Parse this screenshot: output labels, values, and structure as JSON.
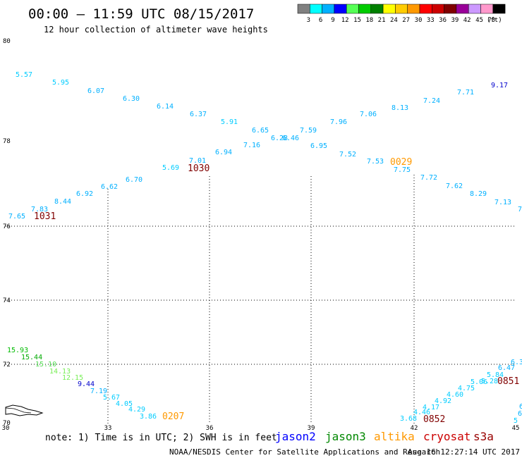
{
  "header": {
    "title": "00:00 – 11:59 UTC 08/15/2017",
    "subtitle": "12 hour collection of altimeter wave heights"
  },
  "color_scale": {
    "boxes": [
      "#808080",
      "#00ffff",
      "#00b0ff",
      "#0000ff",
      "#55ff55",
      "#00cc00",
      "#008000",
      "#ffff00",
      "#ffcc00",
      "#ff9900",
      "#ff0000",
      "#cc0000",
      "#800000",
      "#990099",
      "#cc99ff",
      "#ff99cc",
      "#000000"
    ],
    "labels": [
      "3",
      "6",
      "9",
      "12",
      "15",
      "18",
      "21",
      "24",
      "27",
      "30",
      "33",
      "36",
      "39",
      "42",
      "45",
      "70",
      "(ft)"
    ]
  },
  "axes": {
    "lat_labels": [
      "80",
      "78",
      "76",
      "74",
      "72",
      "70"
    ],
    "lon_labels": [
      "30",
      "33",
      "36",
      "39",
      "42",
      "45"
    ]
  },
  "readings": [
    {
      "text": "5.57",
      "c": "#00ccff"
    },
    {
      "text": "5.95",
      "c": "#00ccff"
    },
    {
      "text": "6.07",
      "c": "#00b0ff"
    },
    {
      "text": "6.30",
      "c": "#00b0ff"
    },
    {
      "text": "6.14",
      "c": "#00b0ff"
    },
    {
      "text": "6.37",
      "c": "#00b0ff"
    },
    {
      "text": "5.91",
      "c": "#00ccff"
    },
    {
      "text": "6.65",
      "c": "#00b0ff"
    },
    {
      "text": "6.28",
      "c": "#00b0ff"
    },
    {
      "text": "6.46",
      "c": "#00b0ff"
    },
    {
      "text": "7.59",
      "c": "#00b0ff"
    },
    {
      "text": "7.96",
      "c": "#00b0ff"
    },
    {
      "text": "7.06",
      "c": "#00b0ff"
    },
    {
      "text": "8.13",
      "c": "#00b0ff"
    },
    {
      "text": "7.24",
      "c": "#00b0ff"
    },
    {
      "text": "7.71",
      "c": "#00b0ff"
    },
    {
      "text": "9.17",
      "c": "#0000cc"
    },
    {
      "text": "7.16",
      "c": "#00b0ff"
    },
    {
      "text": "6.95",
      "c": "#00b0ff"
    },
    {
      "text": "6.94",
      "c": "#00b0ff"
    },
    {
      "text": "7.01",
      "c": "#00b0ff"
    },
    {
      "text": "5.69",
      "c": "#00ccff"
    },
    {
      "text": "6.70",
      "c": "#00b0ff"
    },
    {
      "text": "6.62",
      "c": "#00b0ff"
    },
    {
      "text": "6.92",
      "c": "#00b0ff"
    },
    {
      "text": "8.44",
      "c": "#00b0ff"
    },
    {
      "text": "7.83",
      "c": "#00b0ff"
    },
    {
      "text": "7.65",
      "c": "#00b0ff"
    },
    {
      "text": "7.52",
      "c": "#00b0ff"
    },
    {
      "text": "7.53",
      "c": "#00b0ff"
    },
    {
      "text": "7.75",
      "c": "#00b0ff"
    },
    {
      "text": "7.72",
      "c": "#00b0ff"
    },
    {
      "text": "7.62",
      "c": "#00b0ff"
    },
    {
      "text": "8.29",
      "c": "#00b0ff"
    },
    {
      "text": "7.13",
      "c": "#00b0ff"
    },
    {
      "text": "7",
      "c": "#00b0ff"
    },
    {
      "text": "15.93",
      "c": "#00bb00"
    },
    {
      "text": "15.44",
      "c": "#00aa00"
    },
    {
      "text": "15.10",
      "c": "#55dd55"
    },
    {
      "text": "14.13",
      "c": "#77ee55"
    },
    {
      "text": "12.15",
      "c": "#77ee55"
    },
    {
      "text": "9.44",
      "c": "#0000cc"
    },
    {
      "text": "7.19",
      "c": "#00b0ff"
    },
    {
      "text": "5.67",
      "c": "#00ccff"
    },
    {
      "text": "4.05",
      "c": "#00ccff"
    },
    {
      "text": "4.29",
      "c": "#00ccff"
    },
    {
      "text": "3.86",
      "c": "#00ccff"
    },
    {
      "text": "3.68",
      "c": "#00ccff"
    },
    {
      "text": "4.46",
      "c": "#00ccff"
    },
    {
      "text": "4.17",
      "c": "#00ccff"
    },
    {
      "text": "4.92",
      "c": "#00ccff"
    },
    {
      "text": "4.60",
      "c": "#00ccff"
    },
    {
      "text": "4.75",
      "c": "#00ccff"
    },
    {
      "text": "5.06",
      "c": "#00ccff"
    },
    {
      "text": "5.28",
      "c": "#00ccff"
    },
    {
      "text": "5.84",
      "c": "#00ccff"
    },
    {
      "text": "6.47",
      "c": "#00b0ff"
    },
    {
      "text": "6.3",
      "c": "#00b0ff"
    },
    {
      "text": "6",
      "c": "#00b0ff"
    },
    {
      "text": "6",
      "c": "#00b0ff"
    },
    {
      "text": "5",
      "c": "#00ccff"
    }
  ],
  "times": [
    {
      "text": "1030",
      "c": "#800000"
    },
    {
      "text": "1031",
      "c": "#800000"
    },
    {
      "text": "0029",
      "c": "#ff9900"
    },
    {
      "text": "0207",
      "c": "#ff9900"
    },
    {
      "text": "0852",
      "c": "#800000"
    },
    {
      "text": "0851",
      "c": "#800000"
    }
  ],
  "footer": {
    "note": "note:  1) Time is in UTC;  2) SWH is in feet",
    "satellites": [
      {
        "name": "jason2",
        "c": "#0000ff"
      },
      {
        "name": "jason3",
        "c": "#008800"
      },
      {
        "name": "altika",
        "c": "#ff9900"
      },
      {
        "name": "cryosat",
        "c": "#cc0000"
      },
      {
        "name": "s3a",
        "c": "#990000"
      }
    ],
    "credit": "NOAA/NESDIS Center for Satellite Applications and Research",
    "timestamp": "Aug 16 12:27:14 UTC 2017"
  }
}
